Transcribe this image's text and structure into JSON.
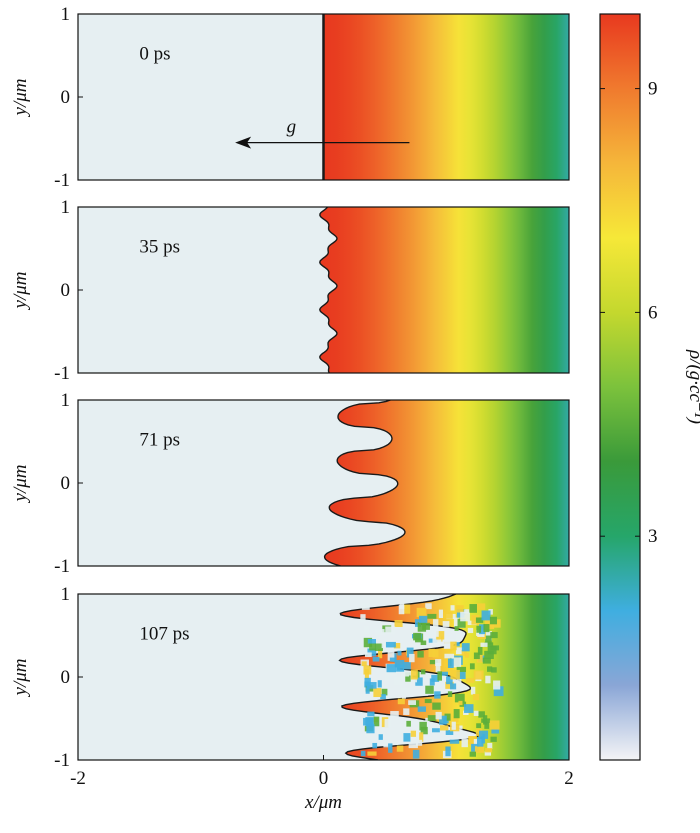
{
  "colors": {
    "background_light": "#e6eff2",
    "interface_dark": "#1a1a1a",
    "colormap_stops": [
      "#f4f4f6",
      "#8aa6d6",
      "#3faee0",
      "#26a66a",
      "#3a9a3a",
      "#7cc23c",
      "#c4d82e",
      "#f6e838",
      "#f5b63a",
      "#f07a2e",
      "#e8391f"
    ]
  },
  "chart_data": {
    "type": "heatmap",
    "panels": [
      {
        "time_label": "0 ps",
        "time_ps": 0,
        "interface_amplitude": 0.0,
        "state": "flat"
      },
      {
        "time_label": "35 ps",
        "time_ps": 35,
        "interface_amplitude": 0.1,
        "state": "small perturbations"
      },
      {
        "time_label": "71 ps",
        "time_ps": 71,
        "interface_amplitude": 0.55,
        "state": "spikes"
      },
      {
        "time_label": "107 ps",
        "time_ps": 107,
        "interface_amplitude": 1.6,
        "state": "turbulent mixing"
      }
    ],
    "xlabel": "x/μm",
    "ylabel": "y/μm",
    "xlim": [
      -2,
      2
    ],
    "ylim": [
      -1,
      1
    ],
    "xticks": [
      "-2",
      "0",
      "2"
    ],
    "yticks": [
      "1",
      "0",
      "-1"
    ],
    "gravity": {
      "label": "g",
      "direction": "-x"
    },
    "colorbar": {
      "label": "ρ/(g·cc⁻¹)",
      "range": [
        0,
        10
      ],
      "ticks": [
        3,
        6,
        9
      ],
      "tick_labels": [
        "3",
        "6",
        "9"
      ]
    },
    "density_profile": {
      "light_side_density": 0.1,
      "heavy_side_density_at_interface": 10,
      "heavy_side_density_at_x2": 2.5
    }
  }
}
